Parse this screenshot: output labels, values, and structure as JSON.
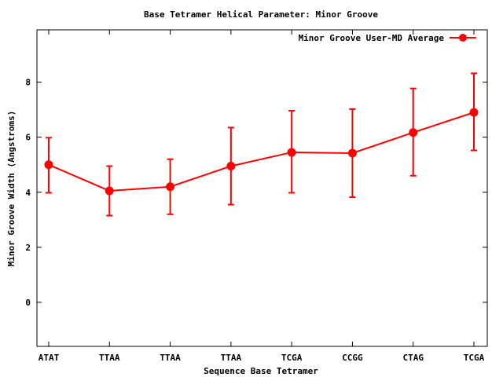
{
  "chart_data": {
    "type": "line",
    "title": "Base Tetramer Helical Parameter: Minor Groove",
    "xlabel": "Sequence Base Tetramer",
    "ylabel": "Minor Groove Width (Angstroms)",
    "categories": [
      "ATAT",
      "TTAA",
      "TTAA",
      "TTAA",
      "TCGA",
      "CCGG",
      "CTAG",
      "TCGA"
    ],
    "ylim": [
      -1.6,
      9.9
    ],
    "yticks": [
      0,
      2,
      4,
      6,
      8
    ],
    "grid": false,
    "legend_position": "top-right",
    "series": [
      {
        "name": "Minor Groove User-MD Average",
        "color": "#ff0000",
        "values": [
          5.0,
          4.05,
          4.2,
          4.95,
          5.45,
          5.42,
          6.17,
          6.9
        ],
        "err_low": [
          3.98,
          3.15,
          3.2,
          3.55,
          3.98,
          3.82,
          4.6,
          5.52
        ],
        "err_high": [
          5.98,
          4.95,
          5.2,
          6.35,
          6.96,
          7.02,
          7.77,
          8.32
        ]
      }
    ]
  }
}
